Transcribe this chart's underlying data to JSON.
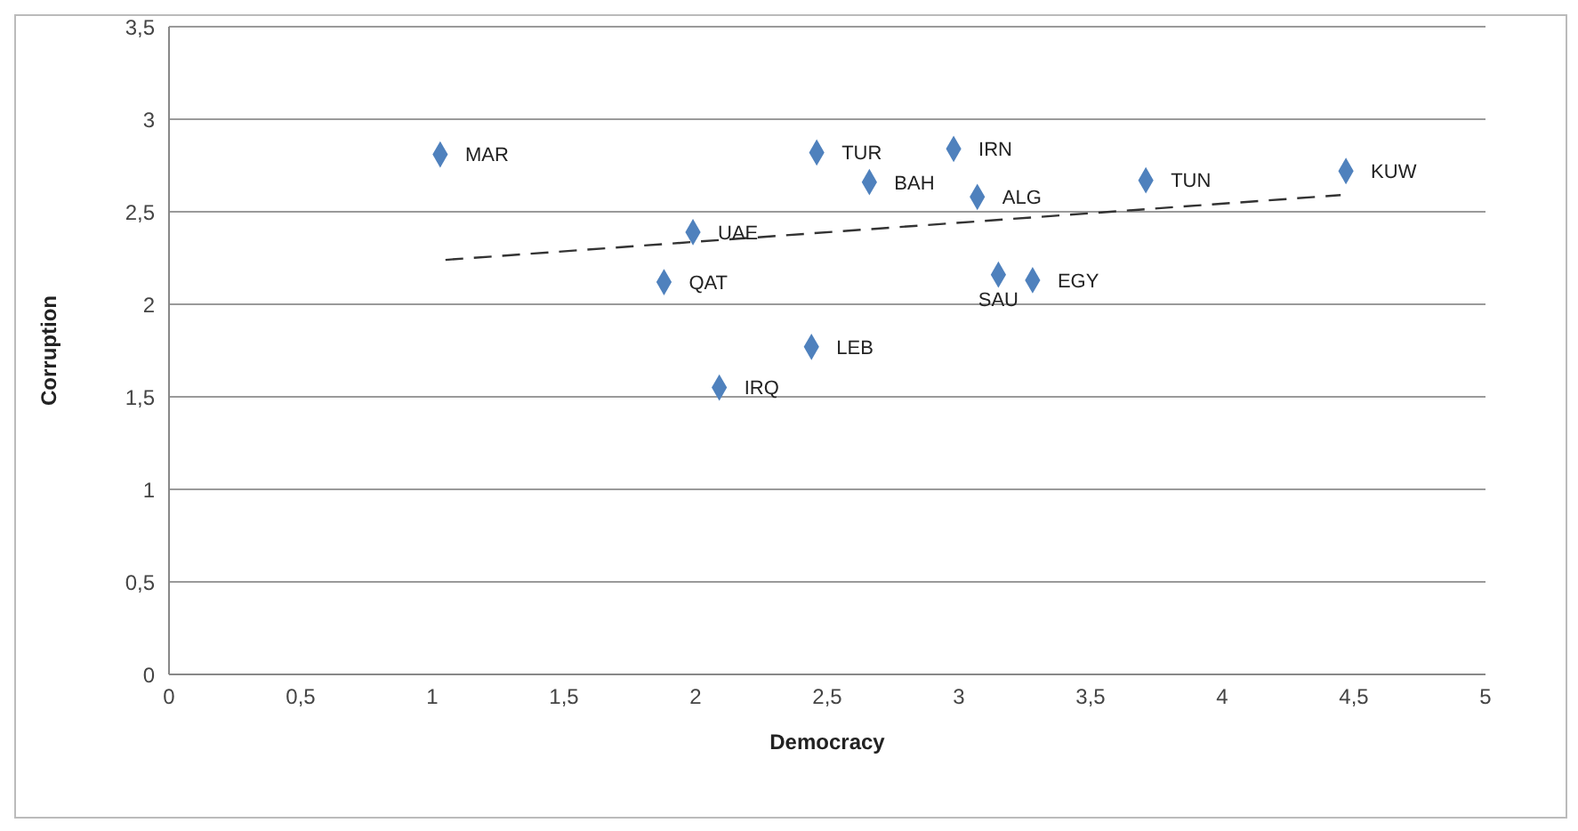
{
  "chart_data": {
    "type": "scatter",
    "xlabel": "Democracy",
    "ylabel": "Corruption",
    "xlim": [
      0,
      5
    ],
    "xticks": [
      0,
      {
        "value": 0.5,
        "label": "0,5"
      },
      1,
      {
        "value": 1.5,
        "label": "1,5"
      },
      2,
      {
        "value": 2.5,
        "label": "2,5"
      },
      3,
      {
        "value": 3.5,
        "label": "3,5"
      },
      4,
      {
        "value": 4.5,
        "label": "4,5"
      },
      5
    ],
    "ylim": [
      0,
      3.5
    ],
    "yticks": [
      0,
      {
        "value": 0.5,
        "label": "0,5"
      },
      1,
      {
        "value": 1.5,
        "label": "1,5"
      },
      2,
      {
        "value": 2.5,
        "label": "2,5"
      },
      3,
      {
        "value": 3.5,
        "label": "3,5"
      }
    ],
    "grid": "y",
    "series": [
      {
        "type": "scatter",
        "color": "#4f81bd",
        "marker": "diamond",
        "x": [
          1.03,
          2.46,
          2.98,
          2.66,
          3.07,
          3.71,
          4.47,
          1.99,
          1.88,
          3.15,
          3.28,
          2.44,
          2.09
        ],
        "values": [
          2.81,
          2.82,
          2.84,
          2.66,
          2.58,
          2.67,
          2.72,
          2.39,
          2.12,
          2.16,
          2.13,
          1.77,
          1.55
        ]
      },
      {
        "type": "line",
        "color": "#333333",
        "marker": "none",
        "line_style": "dashed",
        "x": [
          1.05,
          4.45
        ],
        "values": [
          2.24,
          2.59
        ]
      }
    ],
    "annotations": [
      {
        "text": "MAR",
        "x": 1.03,
        "y": 2.81
      },
      {
        "text": "TUR",
        "x": 2.46,
        "y": 2.82
      },
      {
        "text": "IRN",
        "x": 2.98,
        "y": 2.84
      },
      {
        "text": "BAH",
        "x": 2.66,
        "y": 2.66
      },
      {
        "text": "ALG",
        "x": 3.07,
        "y": 2.58
      },
      {
        "text": "TUN",
        "x": 3.71,
        "y": 2.67
      },
      {
        "text": "KUW",
        "x": 4.47,
        "y": 2.72
      },
      {
        "text": "UAE",
        "x": 1.99,
        "y": 2.39
      },
      {
        "text": "QAT",
        "x": 1.88,
        "y": 2.12
      },
      {
        "text": "SAU",
        "x": 3.15,
        "y": 2.16
      },
      {
        "text": "EGY",
        "x": 3.28,
        "y": 2.13
      },
      {
        "text": "LEB",
        "x": 2.44,
        "y": 1.77
      },
      {
        "text": "IRQ",
        "x": 2.09,
        "y": 1.55
      }
    ]
  }
}
